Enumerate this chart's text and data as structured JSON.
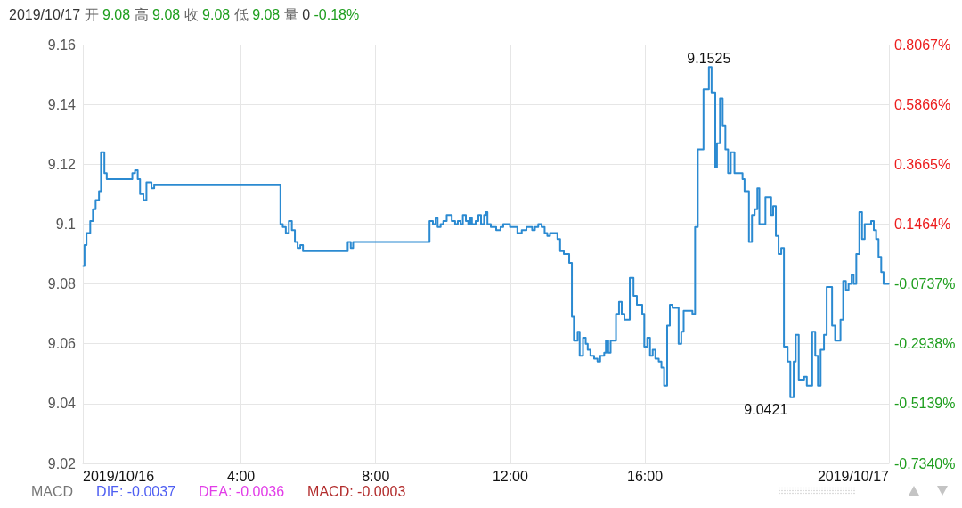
{
  "chart_data": {
    "type": "step",
    "title": "2019/10/17 开 9.08 高 9.08 收 9.08 低 9.08 量 0 -0.18%",
    "x": [
      -0.69,
      -0.65,
      -0.59,
      -0.48,
      -0.4,
      -0.32,
      -0.22,
      -0.16,
      -0.06,
      0.01,
      0.77,
      0.85,
      0.93,
      1.0,
      1.1,
      1.19,
      1.34,
      1.42,
      5.17,
      5.24,
      5.33,
      5.42,
      5.51,
      5.6,
      5.68,
      5.76,
      5.84,
      7.17,
      7.26,
      7.33,
      9.6,
      9.7,
      9.78,
      9.84,
      9.93,
      10.01,
      10.11,
      10.26,
      10.36,
      10.44,
      10.52,
      10.59,
      10.68,
      10.75,
      10.81,
      10.86,
      10.97,
      11.05,
      11.13,
      11.22,
      11.27,
      11.32,
      11.42,
      11.58,
      11.71,
      11.79,
      11.99,
      12.21,
      12.34,
      12.48,
      12.65,
      12.73,
      12.83,
      12.93,
      13.02,
      13.1,
      13.18,
      13.4,
      13.48,
      13.59,
      13.75,
      13.83,
      13.89,
      14.0,
      14.06,
      14.16,
      14.24,
      14.3,
      14.38,
      14.49,
      14.59,
      14.67,
      14.79,
      14.84,
      14.91,
      14.98,
      15.14,
      15.23,
      15.31,
      15.39,
      15.55,
      15.66,
      15.76,
      15.92,
      15.98,
      16.07,
      16.15,
      16.23,
      16.31,
      16.41,
      16.49,
      16.57,
      16.66,
      16.74,
      16.82,
      17.0,
      17.08,
      17.15,
      17.41,
      17.49,
      17.57,
      17.74,
      17.9,
      17.98,
      18.09,
      18.14,
      18.23,
      18.31,
      18.39,
      18.47,
      18.55,
      18.66,
      18.9,
      18.96,
      19.09,
      19.18,
      19.26,
      19.34,
      19.4,
      19.58,
      19.75,
      19.81,
      19.89,
      19.97,
      20.05,
      20.13,
      20.24,
      20.32,
      20.42,
      20.48,
      20.57,
      20.73,
      20.81,
      20.97,
      21.06,
      21.14,
      21.22,
      21.32,
      21.4,
      21.56,
      21.65,
      21.81,
      21.89,
      21.97,
      22.05,
      22.14,
      22.2,
      22.28,
      22.37,
      22.45,
      22.53,
      22.72,
      22.8,
      22.87,
      22.94,
      23.02,
      23.09,
      23.24
    ],
    "values": [
      9.086,
      9.093,
      9.097,
      9.101,
      9.105,
      9.108,
      9.111,
      9.124,
      9.117,
      9.115,
      9.117,
      9.118,
      9.115,
      9.11,
      9.108,
      9.114,
      9.112,
      9.113,
      9.1,
      9.099,
      9.097,
      9.101,
      9.098,
      9.094,
      9.092,
      9.093,
      9.091,
      9.094,
      9.092,
      9.094,
      9.101,
      9.1,
      9.102,
      9.099,
      9.1,
      9.101,
      9.103,
      9.101,
      9.1,
      9.101,
      9.1,
      9.103,
      9.101,
      9.1,
      9.102,
      9.1,
      9.101,
      9.103,
      9.1,
      9.103,
      9.104,
      9.1,
      9.099,
      9.098,
      9.099,
      9.1,
      9.099,
      9.097,
      9.098,
      9.099,
      9.098,
      9.099,
      9.1,
      9.099,
      9.097,
      9.096,
      9.097,
      9.095,
      9.091,
      9.09,
      9.087,
      9.069,
      9.061,
      9.064,
      9.056,
      9.062,
      9.06,
      9.058,
      9.056,
      9.055,
      9.054,
      9.056,
      9.057,
      9.061,
      9.057,
      9.061,
      9.07,
      9.074,
      9.07,
      9.068,
      9.082,
      9.076,
      9.073,
      9.07,
      9.059,
      9.062,
      9.056,
      9.058,
      9.055,
      9.054,
      9.052,
      9.046,
      9.066,
      9.073,
      9.072,
      9.06,
      9.064,
      9.071,
      9.07,
      9.099,
      9.125,
      9.145,
      9.1525,
      9.144,
      9.119,
      9.127,
      9.142,
      9.133,
      9.125,
      9.117,
      9.124,
      9.117,
      9.115,
      9.111,
      9.094,
      9.103,
      9.105,
      9.112,
      9.1,
      9.109,
      9.103,
      9.106,
      9.096,
      9.09,
      9.092,
      9.059,
      9.054,
      9.0421,
      9.054,
      9.063,
      9.048,
      9.049,
      9.046,
      9.064,
      9.056,
      9.046,
      9.058,
      9.063,
      9.079,
      9.066,
      9.061,
      9.068,
      9.081,
      9.078,
      9.08,
      9.083,
      9.08,
      9.09,
      9.104,
      9.095,
      9.1,
      9.101,
      9.098,
      9.095,
      9.089,
      9.084,
      9.08,
      9.08
    ],
    "color": "#2b8ad1",
    "marker": "none",
    "grid": true,
    "xlim": [
      -0.7,
      23.25
    ],
    "xticks": [
      {
        "value": -0.7,
        "label": "2019/10/16"
      },
      {
        "value": 4,
        "label": "4:00"
      },
      {
        "value": 8,
        "label": "8:00"
      },
      {
        "value": 12,
        "label": "12:00"
      },
      {
        "value": 16,
        "label": "16:00"
      },
      {
        "value": 23.25,
        "label": "2019/10/17"
      }
    ],
    "ylim": [
      9.02,
      9.16
    ],
    "yticks": [
      9.02,
      9.04,
      9.06,
      9.08,
      9.1,
      9.12,
      9.14,
      9.16
    ],
    "y2lim": [
      -0.734,
      0.8067
    ],
    "y2ticks": [
      {
        "value": -0.734,
        "label": "-0.7340%"
      },
      {
        "value": -0.5139,
        "label": "-0.5139%"
      },
      {
        "value": -0.2938,
        "label": "-0.2938%"
      },
      {
        "value": -0.0737,
        "label": "-0.0737%"
      },
      {
        "value": 0.1464,
        "label": "0.1464%"
      },
      {
        "value": 0.3665,
        "label": "0.3665%"
      },
      {
        "value": 0.5866,
        "label": "0.5866%"
      },
      {
        "value": 0.8067,
        "label": "0.8067%"
      }
    ],
    "annotations": [
      {
        "text": "9.1525",
        "x": 17.9,
        "y": 9.1525
      },
      {
        "text": "9.0421",
        "x": 20.32,
        "y": 9.0421
      },
      "MACD",
      "DIF: -0.0037",
      "DEA: -0.0036",
      "MACD: -0.0003"
    ]
  }
}
